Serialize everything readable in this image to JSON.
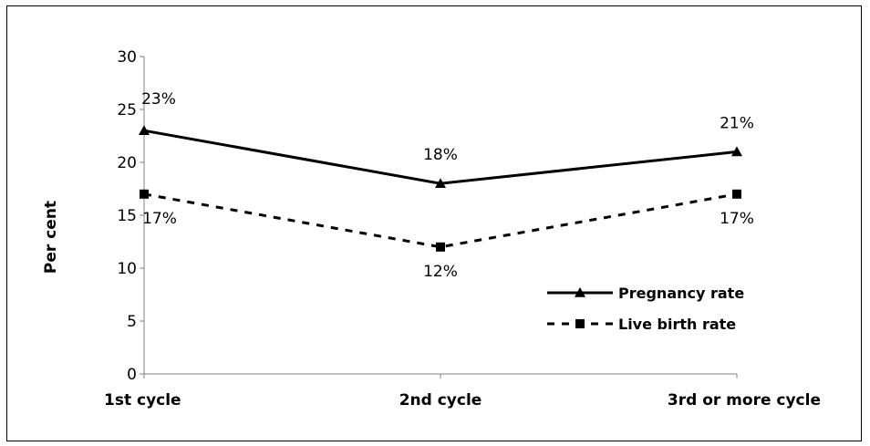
{
  "chart_data": {
    "type": "line",
    "categories": [
      "1st cycle",
      "2nd cycle",
      "3rd or more cycle"
    ],
    "series": [
      {
        "name": "Pregnancy rate",
        "values": [
          23,
          18,
          21
        ],
        "labels": [
          "23%",
          "18%",
          "21%"
        ],
        "line_style": "solid",
        "marker": "triangle",
        "color": "#000000"
      },
      {
        "name": "Live birth rate",
        "values": [
          17,
          12,
          17
        ],
        "labels": [
          "17%",
          "12%",
          "17%"
        ],
        "line_style": "dashed",
        "marker": "square",
        "color": "#000000"
      }
    ],
    "ylabel": "Per cent",
    "ylim": [
      0,
      30
    ],
    "yticks": [
      0,
      5,
      10,
      15,
      20,
      25,
      30
    ],
    "grid": false,
    "legend_position": "bottom-right"
  }
}
